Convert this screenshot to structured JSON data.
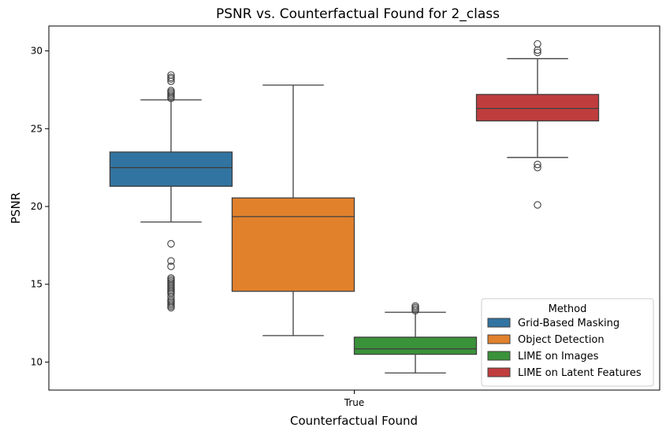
{
  "chart_data": {
    "type": "box",
    "title": "PSNR vs. Counterfactual Found for 2_class",
    "xlabel": "Counterfactual Found",
    "ylabel": "PSNR",
    "categories": [
      "True"
    ],
    "ylim": [
      8.2,
      31.6
    ],
    "yticks": [
      10,
      15,
      20,
      25,
      30
    ],
    "legend": {
      "title": "Method",
      "placement": "lower-right"
    },
    "series": [
      {
        "name": "Grid-Based Masking",
        "color": "#3274a1",
        "whisker_low": 19.0,
        "q1": 21.3,
        "median": 22.5,
        "q3": 23.5,
        "whisker_high": 26.85,
        "outliers": [
          13.5,
          13.6,
          13.7,
          13.8,
          13.9,
          14.0,
          14.2,
          14.4,
          14.5,
          14.6,
          14.7,
          14.8,
          14.9,
          15.0,
          15.1,
          15.2,
          15.3,
          15.4,
          16.15,
          16.5,
          17.6,
          26.95,
          27.05,
          27.15,
          27.25,
          27.35,
          27.45,
          28.05,
          28.2,
          28.3,
          28.45
        ]
      },
      {
        "name": "Object Detection",
        "color": "#e1812c",
        "whisker_low": 11.7,
        "q1": 14.55,
        "median": 19.35,
        "q3": 20.55,
        "whisker_high": 27.8,
        "outliers": []
      },
      {
        "name": "LIME on Images",
        "color": "#3a923a",
        "whisker_low": 9.3,
        "q1": 10.5,
        "median": 10.85,
        "q3": 11.6,
        "whisker_high": 13.2,
        "outliers": [
          13.3,
          13.4,
          13.5,
          13.6
        ]
      },
      {
        "name": "LIME on Latent Features",
        "color": "#c03d3e",
        "whisker_low": 23.15,
        "q1": 25.5,
        "median": 26.3,
        "q3": 27.2,
        "whisker_high": 29.5,
        "outliers": [
          20.1,
          22.5,
          22.7,
          29.9,
          30.05,
          30.45
        ]
      }
    ]
  }
}
